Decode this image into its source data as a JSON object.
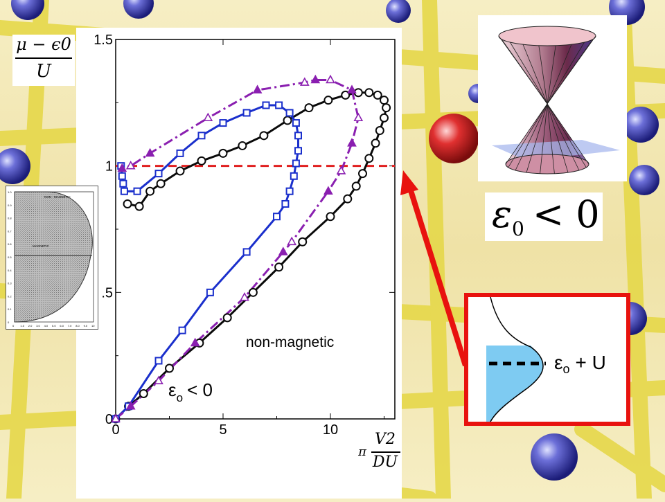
{
  "slide": {
    "y_axis_numerator": "μ − ϵ0",
    "y_axis_denominator": "U",
    "x_axis_numerator": "V2",
    "x_axis_denominator": "DU",
    "x_axis_prefix": "π",
    "label_non_magnetic": "non-magnetic",
    "label_eps_condition": "ε",
    "label_eps_sub": "o",
    "label_eps_rest": "< 0",
    "cone_caption": "ε",
    "cone_caption_sub": "0",
    "cone_caption_rest": "< 0",
    "dos_label": "ε",
    "dos_label_sub": "o",
    "dos_label_rest": "+ U",
    "inset": {
      "label_top": "NON - MAGNETIC",
      "label_mid": "MAGNETIC",
      "yticks": [
        "1.0",
        "0.9",
        "0.8",
        "0.7",
        "0.6",
        "0.5",
        "0.4",
        "0.3",
        "0.2",
        "0.1",
        "0"
      ],
      "xticks": [
        "0",
        "1.0",
        "2.0",
        "3.0",
        "4.0",
        "5.0",
        "6.0",
        "7.0",
        "8.0",
        "9.0",
        "10"
      ]
    }
  },
  "chart_data": {
    "type": "line",
    "xlim": [
      0,
      13
    ],
    "ylim": [
      0,
      1.5
    ],
    "xticks": [
      "0",
      "5",
      "10"
    ],
    "yticks": [
      "0",
      ".5",
      "1",
      "1.5"
    ],
    "reference_line": {
      "y": 1.0,
      "color": "#e02020",
      "style": "dashed"
    },
    "series": [
      {
        "color": "#0a0a0a",
        "marker": "circle",
        "style": "solid",
        "points": [
          [
            0,
            0
          ],
          [
            0.6,
            0.05
          ],
          [
            1.3,
            0.1
          ],
          [
            2.5,
            0.2
          ],
          [
            3.9,
            0.3
          ],
          [
            5.2,
            0.4
          ],
          [
            6.4,
            0.5
          ],
          [
            7.6,
            0.6
          ],
          [
            8.7,
            0.7
          ],
          [
            10.0,
            0.8
          ],
          [
            10.8,
            0.87
          ],
          [
            11.2,
            0.92
          ],
          [
            11.5,
            0.97
          ],
          [
            11.8,
            1.03
          ],
          [
            12.1,
            1.09
          ],
          [
            12.3,
            1.14
          ],
          [
            12.5,
            1.19
          ],
          [
            12.6,
            1.23
          ],
          [
            12.5,
            1.26
          ],
          [
            12.2,
            1.28
          ],
          [
            11.8,
            1.29
          ],
          [
            11.3,
            1.29
          ],
          [
            10.7,
            1.28
          ],
          [
            9.9,
            1.26
          ],
          [
            9.0,
            1.23
          ],
          [
            8.0,
            1.18
          ],
          [
            6.9,
            1.12
          ],
          [
            5.9,
            1.08
          ],
          [
            5.0,
            1.05
          ],
          [
            4.0,
            1.02
          ],
          [
            3.0,
            0.98
          ],
          [
            2.1,
            0.93
          ],
          [
            1.6,
            0.9
          ],
          [
            1.1,
            0.84
          ],
          [
            0.55,
            0.85
          ]
        ]
      },
      {
        "color": "#1a2fcc",
        "marker": "square",
        "style": "solid",
        "points": [
          [
            0,
            0
          ],
          [
            0.6,
            0.05
          ],
          [
            2.0,
            0.23
          ],
          [
            3.1,
            0.35
          ],
          [
            4.4,
            0.5
          ],
          [
            6.1,
            0.66
          ],
          [
            7.5,
            0.8
          ],
          [
            7.9,
            0.85
          ],
          [
            8.1,
            0.9
          ],
          [
            8.3,
            0.96
          ],
          [
            8.4,
            1.01
          ],
          [
            8.5,
            1.06
          ],
          [
            8.5,
            1.12
          ],
          [
            8.4,
            1.17
          ],
          [
            8.1,
            1.21
          ],
          [
            7.6,
            1.24
          ],
          [
            7.0,
            1.24
          ],
          [
            6.1,
            1.21
          ],
          [
            5.0,
            1.17
          ],
          [
            4.0,
            1.12
          ],
          [
            3.0,
            1.05
          ],
          [
            2.0,
            0.97
          ],
          [
            1.0,
            0.9
          ],
          [
            0.4,
            0.9
          ],
          [
            0.35,
            0.93
          ],
          [
            0.3,
            0.96
          ],
          [
            0.25,
            1.0
          ]
        ]
      },
      {
        "color": "#8a1fb0",
        "marker": "triangle",
        "style": "dashdot",
        "points": [
          [
            0,
            0
          ],
          [
            0.7,
            0.05
          ],
          [
            2.0,
            0.15
          ],
          [
            3.7,
            0.3
          ],
          [
            6.0,
            0.48
          ],
          [
            7.8,
            0.66
          ],
          [
            8.2,
            0.7
          ],
          [
            9.9,
            0.9
          ],
          [
            10.5,
            0.98
          ],
          [
            11.0,
            1.09
          ],
          [
            11.3,
            1.19
          ],
          [
            11.0,
            1.3
          ],
          [
            10.0,
            1.34
          ],
          [
            9.3,
            1.34
          ],
          [
            8.8,
            1.33
          ],
          [
            6.6,
            1.3
          ],
          [
            4.3,
            1.19
          ],
          [
            1.6,
            1.05
          ],
          [
            0.7,
            1.0
          ],
          [
            0.3,
            0.99
          ]
        ]
      }
    ]
  }
}
